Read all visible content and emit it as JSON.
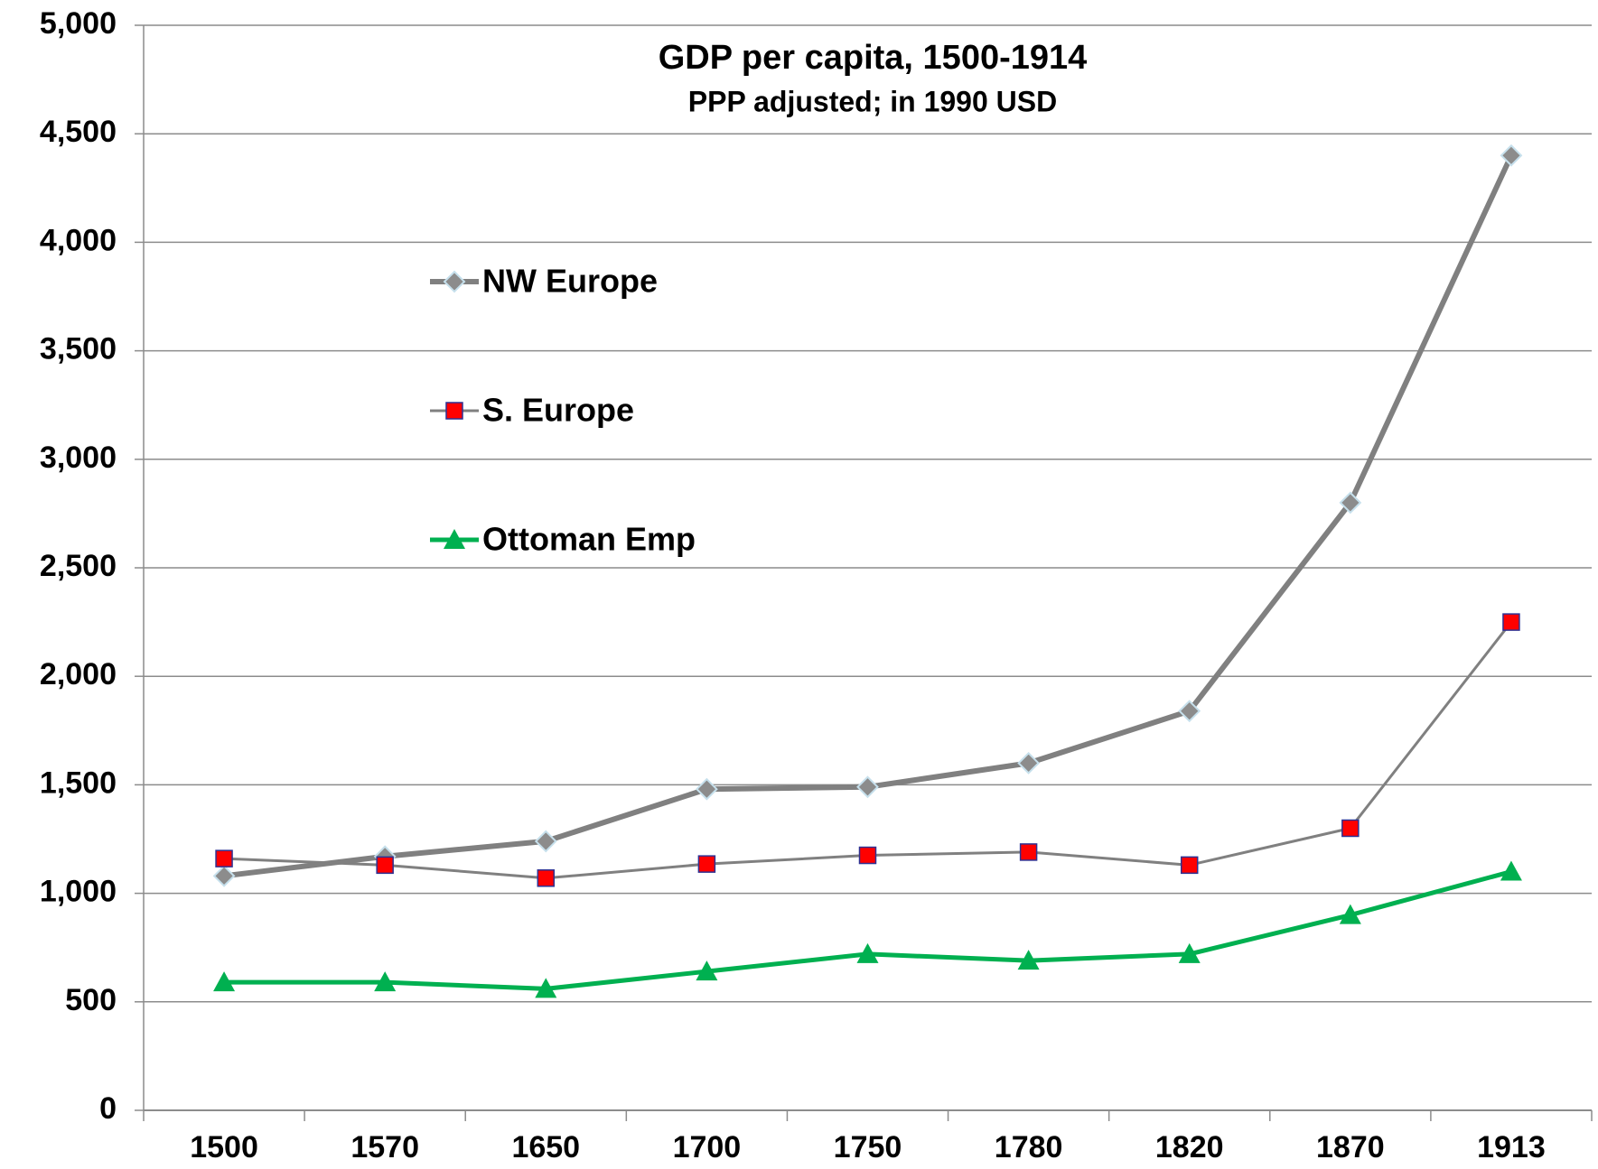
{
  "chart_data": {
    "type": "line",
    "title": "GDP per capita, 1500-1914",
    "subtitle": "PPP adjusted; in 1990 USD",
    "categories": [
      "1500",
      "1570",
      "1650",
      "1700",
      "1750",
      "1780",
      "1820",
      "1870",
      "1913"
    ],
    "series": [
      {
        "name": "NW Europe",
        "color": "#808080",
        "marker": "diamond",
        "marker_color": "#8c8c8c",
        "values": [
          1080,
          1170,
          1240,
          1480,
          1490,
          1600,
          1840,
          2800,
          4400
        ]
      },
      {
        "name": "S. Europe",
        "color": "#808080",
        "marker": "square",
        "marker_color": "#ff0000",
        "values": [
          1160,
          1130,
          1070,
          1135,
          1175,
          1190,
          1130,
          1300,
          2250
        ]
      },
      {
        "name": "Ottoman Emp",
        "color": "#00b050",
        "marker": "triangle",
        "marker_color": "#00b050",
        "values": [
          590,
          590,
          560,
          640,
          720,
          690,
          720,
          900,
          1100
        ]
      }
    ],
    "ylim": [
      0,
      5000
    ],
    "yticks": [
      0,
      {
        "value": 500,
        "label": "500"
      },
      {
        "value": 1000,
        "label": "1,000"
      },
      {
        "value": 1500,
        "label": "1,500"
      },
      {
        "value": 2000,
        "label": "2,000"
      },
      {
        "value": 2500,
        "label": "2,500"
      },
      {
        "value": 3000,
        "label": "3,000"
      },
      {
        "value": 3500,
        "label": "3,500"
      },
      {
        "value": 4000,
        "label": "4,000"
      },
      {
        "value": 4500,
        "label": "4,500"
      },
      {
        "value": 5000,
        "label": "5,000"
      }
    ],
    "grid": true,
    "legend": "upper left"
  }
}
